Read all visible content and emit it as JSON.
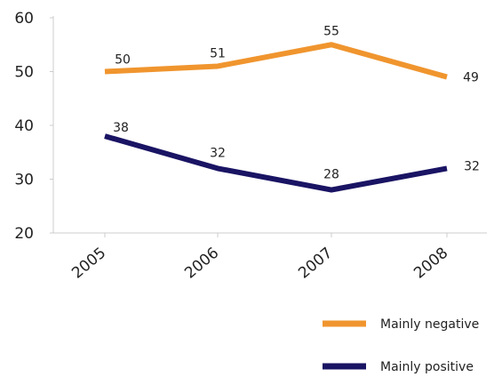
{
  "chart_data": {
    "type": "line",
    "categories": [
      "2005",
      "2006",
      "2007",
      "2008"
    ],
    "ylim": [
      20,
      60
    ],
    "yticks": [
      20,
      30,
      40,
      50,
      60
    ],
    "grid": false,
    "legend_position": "bottom-right",
    "series": [
      {
        "name": "Mainly negative",
        "color": "#F0952E",
        "values": [
          50,
          51,
          55,
          49
        ]
      },
      {
        "name": "Mainly positive",
        "color": "#1A1464",
        "values": [
          38,
          32,
          28,
          32
        ]
      }
    ]
  },
  "axis_color": "#cccccc"
}
